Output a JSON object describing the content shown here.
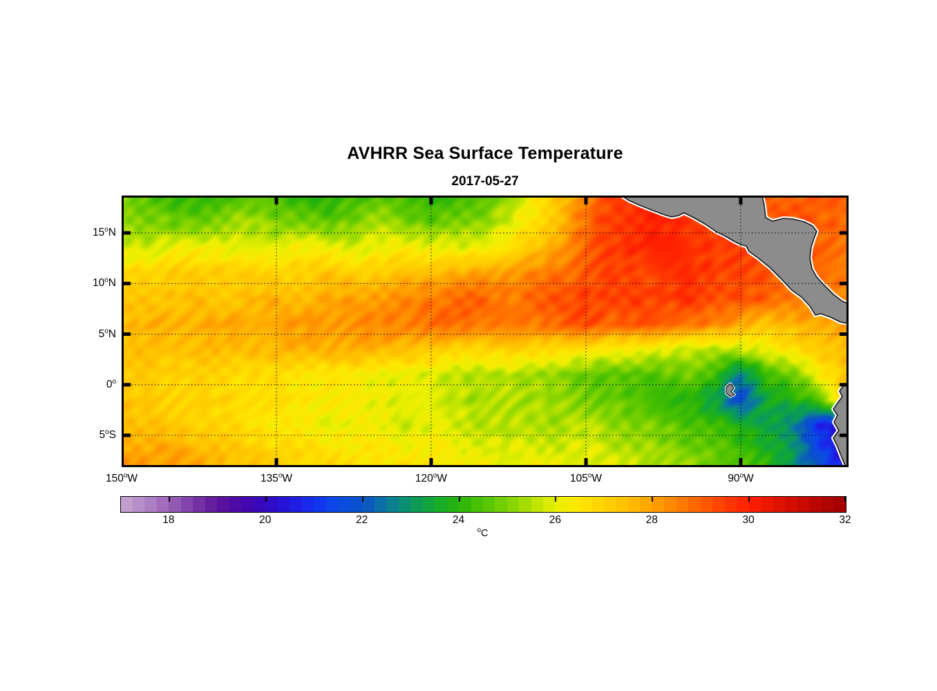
{
  "figure": {
    "title": "AVHRR Sea Surface Temperature",
    "subtitle": "2017-05-27"
  },
  "chart_data": {
    "type": "heatmap",
    "title": "AVHRR Sea Surface Temperature",
    "date": "2017-05-27",
    "x_axis": {
      "tick_lons": [
        -150,
        -135,
        -120,
        -105,
        -90
      ],
      "tick_labels": [
        "150°W",
        "135°W",
        "120°W",
        "105°W",
        "90°W"
      ],
      "range_lon": [
        -150,
        -79.55
      ],
      "grid": "dotted"
    },
    "y_axis": {
      "tick_lats": [
        15,
        10,
        5,
        0,
        -5
      ],
      "tick_labels": [
        "15°N",
        "10°N",
        "5°N",
        "0°",
        "5°S"
      ],
      "range_lat": [
        -8.14,
        18.69
      ],
      "grid": "dotted"
    },
    "colorbar": {
      "unit": "°C",
      "range": [
        17,
        32
      ],
      "tick_values": [
        18,
        20,
        22,
        24,
        26,
        28,
        30,
        32
      ],
      "orientation": "horizontal",
      "stops": [
        [
          17.0,
          "#C9A4CF"
        ],
        [
          17.5,
          "#B287C7"
        ],
        [
          18.0,
          "#9A63B7"
        ],
        [
          18.5,
          "#7C3BA8"
        ],
        [
          19.0,
          "#5D149B"
        ],
        [
          19.5,
          "#4708A8"
        ],
        [
          20.0,
          "#3408C0"
        ],
        [
          20.5,
          "#2316DC"
        ],
        [
          21.0,
          "#1430F0"
        ],
        [
          21.5,
          "#0A4CE6"
        ],
        [
          22.0,
          "#0A50C8"
        ],
        [
          22.5,
          "#0A78A0"
        ],
        [
          23.0,
          "#0A9664"
        ],
        [
          23.5,
          "#14AA32"
        ],
        [
          24.0,
          "#28B40A"
        ],
        [
          24.5,
          "#50C300"
        ],
        [
          25.0,
          "#7DD200"
        ],
        [
          25.5,
          "#B4E100"
        ],
        [
          26.0,
          "#EBF000"
        ],
        [
          26.5,
          "#FFE600"
        ],
        [
          27.0,
          "#FFD200"
        ],
        [
          27.5,
          "#FFBE00"
        ],
        [
          28.0,
          "#FFA000"
        ],
        [
          28.5,
          "#FF8200"
        ],
        [
          29.0,
          "#FF5F00"
        ],
        [
          29.5,
          "#FF3C00"
        ],
        [
          30.0,
          "#FF1E00"
        ],
        [
          30.5,
          "#E61400"
        ],
        [
          31.0,
          "#CD0A00"
        ],
        [
          31.5,
          "#B40500"
        ],
        [
          32.0,
          "#A00000"
        ]
      ]
    },
    "land_masses": [
      "central-america",
      "south-america",
      "galapagos-islands"
    ],
    "colors": {
      "land_fill": "#8C8C8C",
      "coast_outline": "#1A1A1A",
      "coast_fringe": "#FFFFFF",
      "grid_color": "#000000",
      "background": "#FFFFFF"
    },
    "grid": {
      "lons": [
        -150,
        -147.5,
        -145,
        -142.5,
        -140,
        -137.5,
        -135,
        -132.5,
        -130,
        -127.5,
        -125,
        -122.5,
        -120,
        -117.5,
        -115,
        -112.5,
        -110,
        -107.5,
        -105,
        -102.5,
        -100,
        -97.5,
        -95,
        -92.5,
        -90,
        -87.5,
        -85,
        -82.5,
        -80
      ],
      "lats": [
        18.7,
        16,
        13.5,
        11,
        8.5,
        6,
        3.5,
        1,
        -1.5,
        -4,
        -6.5,
        -8.2
      ],
      "sst_c": [
        [
          25.0,
          24.6,
          24.2,
          24.0,
          24.3,
          24.6,
          24.4,
          24.0,
          23.8,
          24.2,
          24.5,
          24.2,
          23.9,
          24.1,
          24.4,
          25.2,
          26.2,
          27.4,
          28.6,
          29.4,
          29.8,
          29.8,
          29.6,
          29.4,
          29.2,
          29.0,
          29.0,
          29.0,
          28.9
        ],
        [
          25.4,
          25.1,
          24.8,
          24.9,
          25.2,
          25.4,
          25.1,
          24.8,
          24.7,
          25.0,
          25.3,
          25.0,
          24.7,
          24.9,
          25.2,
          25.8,
          26.6,
          27.6,
          28.8,
          29.6,
          29.9,
          29.9,
          29.7,
          29.5,
          29.3,
          29.2,
          29.1,
          29.0,
          28.9
        ],
        [
          25.9,
          25.7,
          26.0,
          26.2,
          26.0,
          25.8,
          26.0,
          26.3,
          26.1,
          25.9,
          26.1,
          26.4,
          26.2,
          26.0,
          26.2,
          26.6,
          27.3,
          28.1,
          28.9,
          29.5,
          29.8,
          29.9,
          29.7,
          29.5,
          29.4,
          29.3,
          29.2,
          29.0,
          28.8
        ],
        [
          26.8,
          26.9,
          27.1,
          27.0,
          27.2,
          27.0,
          26.9,
          27.1,
          27.3,
          27.1,
          27.2,
          27.4,
          27.6,
          27.8,
          28.0,
          28.2,
          28.4,
          28.7,
          29.1,
          29.4,
          29.3,
          29.5,
          29.7,
          29.5,
          29.3,
          29.1,
          29.0,
          28.8,
          28.6
        ],
        [
          27.2,
          27.4,
          27.3,
          27.5,
          27.3,
          27.5,
          27.7,
          27.6,
          27.8,
          28.0,
          28.1,
          28.3,
          28.6,
          28.8,
          28.9,
          28.6,
          28.8,
          29.2,
          29.5,
          29.3,
          29.6,
          29.4,
          29.7,
          29.4,
          29.2,
          29.0,
          28.8,
          28.5,
          28.3
        ],
        [
          27.5,
          27.7,
          27.6,
          27.8,
          27.9,
          27.8,
          28.0,
          28.1,
          28.2,
          28.3,
          28.4,
          28.6,
          28.8,
          28.9,
          28.7,
          28.5,
          28.7,
          29.0,
          29.2,
          29.0,
          29.2,
          29.0,
          28.8,
          28.4,
          28.0,
          27.4,
          27.6,
          27.9,
          28.1
        ],
        [
          27.3,
          27.4,
          27.3,
          27.5,
          27.4,
          27.5,
          27.6,
          27.7,
          27.8,
          27.8,
          27.7,
          27.5,
          27.2,
          27.0,
          26.9,
          27.1,
          26.9,
          26.7,
          26.5,
          26.3,
          26.1,
          25.9,
          25.6,
          25.4,
          25.7,
          26.1,
          26.6,
          27.2,
          27.5
        ],
        [
          27.0,
          27.1,
          27.0,
          26.9,
          26.8,
          26.7,
          26.6,
          26.5,
          26.4,
          26.3,
          26.2,
          26.0,
          25.9,
          25.7,
          25.4,
          25.6,
          25.3,
          25.0,
          24.8,
          24.5,
          24.4,
          24.6,
          24.8,
          24.2,
          22.5,
          24.2,
          24.9,
          26.2,
          27.2
        ],
        [
          27.3,
          27.2,
          27.1,
          27.0,
          26.9,
          26.8,
          26.7,
          26.5,
          26.4,
          26.2,
          26.1,
          25.9,
          25.8,
          25.6,
          25.3,
          25.5,
          25.4,
          25.2,
          25.0,
          24.8,
          24.5,
          24.3,
          24.0,
          23.2,
          21.8,
          23.4,
          23.8,
          24.5,
          27.0
        ],
        [
          27.6,
          27.4,
          27.2,
          27.0,
          26.8,
          26.6,
          26.4,
          26.2,
          26.0,
          26.2,
          26.0,
          25.8,
          26.0,
          25.8,
          25.6,
          25.4,
          25.6,
          25.4,
          25.6,
          25.3,
          25.0,
          24.8,
          24.5,
          24.2,
          23.8,
          23.4,
          22.6,
          21.0,
          19.8
        ],
        [
          28.0,
          27.8,
          27.9,
          27.6,
          27.3,
          27.1,
          26.9,
          26.7,
          26.6,
          26.4,
          26.5,
          26.3,
          26.4,
          26.2,
          26.0,
          25.9,
          26.0,
          25.8,
          25.9,
          25.7,
          25.4,
          25.2,
          24.9,
          24.6,
          24.3,
          23.8,
          23.0,
          21.6,
          20.2
        ],
        [
          28.2,
          28.0,
          28.1,
          27.8,
          27.5,
          27.3,
          27.1,
          26.9,
          26.8,
          26.6,
          26.7,
          26.5,
          26.6,
          26.4,
          26.2,
          26.1,
          26.2,
          26.0,
          26.1,
          25.9,
          25.6,
          25.4,
          25.2,
          24.8,
          24.5,
          24.0,
          23.2,
          21.8,
          20.4
        ]
      ]
    }
  }
}
